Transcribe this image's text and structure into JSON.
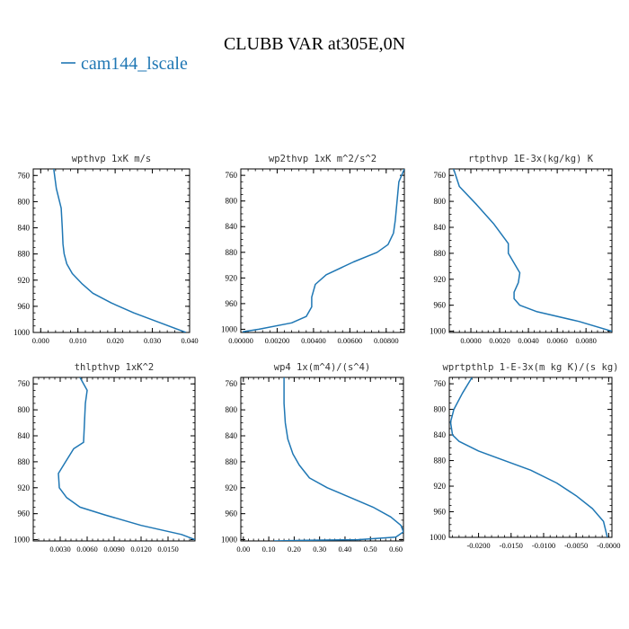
{
  "figure": {
    "title": "CLUBB VAR at305E,0N",
    "legend": {
      "label": "cam144_lscale",
      "color": "#1f77b4",
      "placement": "top-left"
    }
  },
  "chart_data": [
    {
      "type": "line",
      "title": "wpthvp 1xK m/s",
      "xlim": [
        -0.002,
        0.04
      ],
      "ylim": [
        1000,
        750
      ],
      "xticks": [
        "0.000",
        "0.010",
        "0.020",
        "0.030",
        "0.040"
      ],
      "yticks": [
        "760",
        "800",
        "840",
        "880",
        "920",
        "960",
        "1000"
      ],
      "series": [
        {
          "color": "#1f77b4",
          "x": [
            0.0035,
            0.0042,
            0.0055,
            0.0058,
            0.006,
            0.0063,
            0.007,
            0.0085,
            0.011,
            0.014,
            0.019,
            0.025,
            0.032,
            0.039
          ],
          "y": [
            750,
            780,
            810,
            840,
            865,
            880,
            895,
            910,
            925,
            940,
            955,
            970,
            985,
            1000
          ]
        }
      ]
    },
    {
      "type": "line",
      "title": "wp2thvp 1xK m^2/s^2",
      "xlim": [
        0,
        0.009
      ],
      "ylim": [
        1005,
        750
      ],
      "xticks": [
        "0.00000",
        "0.00200",
        "0.00400",
        "0.00600",
        "0.00800"
      ],
      "yticks": [
        "760",
        "800",
        "840",
        "880",
        "920",
        "960",
        "1000"
      ],
      "series": [
        {
          "color": "#1f77b4",
          "x": [
            0.009,
            0.0087,
            0.0086,
            0.0085,
            0.0084,
            0.0081,
            0.0075,
            0.0062,
            0.0047,
            0.0041,
            0.0039,
            0.0039,
            0.0036,
            0.0028,
            0.001,
            0.0001
          ],
          "y": [
            750,
            770,
            800,
            830,
            850,
            868,
            880,
            895,
            915,
            930,
            950,
            965,
            980,
            990,
            1000,
            1004
          ]
        }
      ]
    },
    {
      "type": "line",
      "title": "rtpthvp 1E-3x(kg/kg) K",
      "xlim": [
        -0.0015,
        0.0098
      ],
      "ylim": [
        1002,
        750
      ],
      "xticks": [
        "0.0000",
        "0.0020",
        "0.0040",
        "0.0060",
        "0.0080"
      ],
      "yticks": [
        "760",
        "800",
        "840",
        "880",
        "920",
        "960",
        "1000"
      ],
      "series": [
        {
          "color": "#1f77b4",
          "x": [
            -0.0012,
            -0.0008,
            0.0004,
            0.0016,
            0.0026,
            0.0026,
            0.003,
            0.0034,
            0.0033,
            0.003,
            0.003,
            0.0034,
            0.0046,
            0.0075,
            0.0098
          ],
          "y": [
            750,
            777,
            805,
            835,
            865,
            880,
            895,
            910,
            925,
            940,
            950,
            960,
            970,
            985,
            1000
          ]
        }
      ]
    },
    {
      "type": "line",
      "title": "thlpthvp 1xK^2",
      "xlim": [
        0,
        0.018
      ],
      "ylim": [
        1002,
        750
      ],
      "xticks": [
        "0.0030",
        "0.0060",
        "0.0090",
        "0.0120",
        "0.0150"
      ],
      "yticks": [
        "760",
        "800",
        "840",
        "880",
        "920",
        "960",
        "1000"
      ],
      "series": [
        {
          "color": "#1f77b4",
          "x": [
            0.0052,
            0.006,
            0.0058,
            0.0056,
            0.0045,
            0.0036,
            0.0028,
            0.0029,
            0.0037,
            0.0052,
            0.008,
            0.012,
            0.0165,
            0.018
          ],
          "y": [
            750,
            770,
            790,
            850,
            860,
            880,
            898,
            920,
            935,
            950,
            962,
            978,
            992,
            1000
          ]
        }
      ]
    },
    {
      "type": "line",
      "title": "wp4 1x(m^4)/(s^4)",
      "xlim": [
        -0.01,
        0.63
      ],
      "ylim": [
        1002,
        750
      ],
      "xticks": [
        "0.00",
        "0.10",
        "0.20",
        "0.30",
        "0.40",
        "0.50",
        "0.60"
      ],
      "yticks": [
        "760",
        "800",
        "840",
        "880",
        "920",
        "960",
        "1000"
      ],
      "series": [
        {
          "color": "#1f77b4",
          "x": [
            0.16,
            0.16,
            0.165,
            0.175,
            0.195,
            0.22,
            0.26,
            0.33,
            0.42,
            0.51,
            0.58,
            0.62,
            0.63,
            0.6,
            0.45,
            0.25,
            0.12
          ],
          "y": [
            750,
            790,
            820,
            845,
            868,
            885,
            905,
            920,
            935,
            950,
            965,
            978,
            988,
            996,
            1000,
            1001,
            1002
          ]
        }
      ]
    },
    {
      "type": "line",
      "title": "wprtpthlp 1-E-3x(m kg K)/(s kg)",
      "xlim": [
        -0.0245,
        0.0005
      ],
      "ylim": [
        1000,
        750
      ],
      "xticks": [
        "-0.0200",
        "-0.0150",
        "-0.0100",
        "-0.0050",
        "-0.0000"
      ],
      "yticks": [
        "760",
        "800",
        "840",
        "880",
        "920",
        "960",
        "1000"
      ],
      "series": [
        {
          "color": "#1f77b4",
          "x": [
            -0.021,
            -0.0225,
            -0.0238,
            -0.0243,
            -0.024,
            -0.023,
            -0.02,
            -0.016,
            -0.012,
            -0.008,
            -0.005,
            -0.0025,
            -0.0008,
            -0.0002
          ],
          "y": [
            750,
            775,
            800,
            820,
            840,
            850,
            865,
            880,
            895,
            915,
            935,
            955,
            975,
            1000
          ]
        }
      ]
    }
  ]
}
